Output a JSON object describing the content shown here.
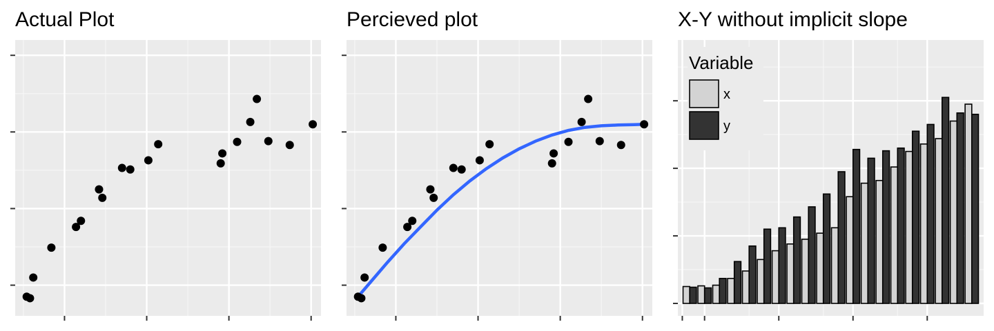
{
  "chart_data": [
    {
      "type": "scatter",
      "title": "Actual Plot",
      "xlabel": "",
      "ylabel": "",
      "xlim": [
        -0.5,
        18.1
      ],
      "ylim": [
        0.1,
        3.7
      ],
      "grid": true,
      "x": [
        0.2,
        0.4,
        0.6,
        1.7,
        3.2,
        3.5,
        4.6,
        4.8,
        6.0,
        6.5,
        7.6,
        8.2,
        12.0,
        12.1,
        13.0,
        13.8,
        14.2,
        14.9,
        16.2,
        17.6
      ],
      "y": [
        0.35,
        0.33,
        0.6,
        0.99,
        1.26,
        1.34,
        1.75,
        1.64,
        2.03,
        2.01,
        2.13,
        2.34,
        2.09,
        2.22,
        2.37,
        2.63,
        2.93,
        2.38,
        2.33,
        2.6
      ]
    },
    {
      "type": "scatter",
      "title": "Percieved plot",
      "xlabel": "",
      "ylabel": "",
      "xlim": [
        -0.5,
        18.1
      ],
      "ylim": [
        0.1,
        3.7
      ],
      "grid": true,
      "x": [
        0.2,
        0.4,
        0.6,
        1.7,
        3.2,
        3.5,
        4.6,
        4.8,
        6.0,
        6.5,
        7.6,
        8.2,
        12.0,
        12.1,
        13.0,
        13.8,
        14.2,
        14.9,
        16.2,
        17.6
      ],
      "y": [
        0.35,
        0.33,
        0.6,
        0.99,
        1.26,
        1.34,
        1.75,
        1.64,
        2.03,
        2.01,
        2.13,
        2.34,
        2.09,
        2.22,
        2.37,
        2.63,
        2.93,
        2.38,
        2.33,
        2.6
      ],
      "smooth_color": "#3366FF",
      "smooth_x": [
        0.2,
        1.0,
        2.0,
        3.0,
        4.0,
        5.0,
        6.0,
        7.0,
        8.0,
        9.0,
        10.0,
        11.0,
        12.0,
        13.0,
        14.0,
        15.0,
        16.0,
        17.0,
        17.6
      ],
      "smooth_y": [
        0.35,
        0.55,
        0.8,
        1.04,
        1.26,
        1.48,
        1.68,
        1.86,
        2.02,
        2.16,
        2.28,
        2.38,
        2.46,
        2.52,
        2.56,
        2.58,
        2.59,
        2.595,
        2.6
      ]
    },
    {
      "type": "bar",
      "title": "X-Y without implicit slope",
      "xlabel": "",
      "ylabel": "",
      "ylim": [
        0,
        3.9
      ],
      "grid": true,
      "legend": {
        "title": "Variable",
        "placement": "top-left",
        "entries": [
          {
            "label": "x",
            "color": "#D3D3D3"
          },
          {
            "label": "y",
            "color": "#333333"
          }
        ]
      },
      "series": [
        {
          "name": "x",
          "color": "#D3D3D3",
          "values": [
            0.25,
            0.26,
            0.27,
            0.37,
            0.48,
            0.65,
            0.78,
            0.88,
            0.95,
            1.04,
            1.12,
            1.58,
            1.78,
            1.82,
            2.02,
            2.25,
            2.36,
            2.44,
            2.7,
            2.95
          ]
        },
        {
          "name": "y",
          "color": "#333333",
          "values": [
            0.24,
            0.23,
            0.37,
            0.62,
            0.85,
            1.1,
            1.12,
            1.28,
            1.43,
            1.62,
            1.95,
            2.28,
            2.15,
            2.26,
            2.3,
            2.55,
            2.65,
            3.05,
            2.82,
            2.8
          ]
        }
      ]
    }
  ]
}
